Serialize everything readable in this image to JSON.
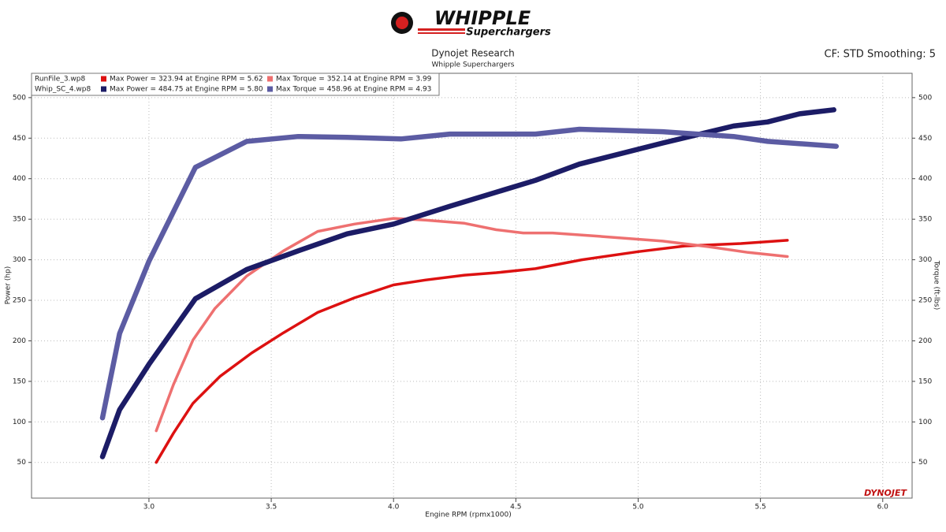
{
  "chart_data": {
    "type": "line",
    "logo_text": "WHIPPLE",
    "logo_tagline": "Superchargers",
    "title": "Dynojet Research",
    "subtitle": "Whipple Superchargers",
    "settings_label": "CF: STD Smoothing: 5",
    "watermark": "DYNOJET",
    "x_label": "Engine RPM (rpmx1000)",
    "y_label": "Power (hp)",
    "y2_label": "Torque (ft-lbs)",
    "runs": [
      "RunFile_3.wp8",
      "Whip_SC_4.wp8"
    ],
    "xlim": [
      2.52,
      6.12
    ],
    "xticks": [
      {
        "value": 3,
        "label": "3.0"
      },
      3.5,
      {
        "value": 4,
        "label": "4.0"
      },
      4.5,
      {
        "value": 5,
        "label": "5.0"
      },
      5.5,
      {
        "value": 6,
        "label": "6.0"
      }
    ],
    "ylim": [
      6,
      530
    ],
    "yticks": [
      50,
      100,
      150,
      200,
      250,
      300,
      350,
      400,
      450,
      500
    ],
    "y2lim": [
      6,
      530
    ],
    "y2ticks": [
      50,
      100,
      150,
      200,
      250,
      300,
      350,
      400,
      450,
      500
    ],
    "grid": true,
    "series": [
      {
        "name": "Max Power = 323.94 at Engine RPM = 5.62",
        "color": "#dd1111",
        "x": [
          3.03,
          3.1,
          3.18,
          3.29,
          3.42,
          3.55,
          3.69,
          3.84,
          4.0,
          4.13,
          4.29,
          4.42,
          4.58,
          4.77,
          5.0,
          5.19,
          5.42,
          5.61
        ],
        "values": [
          50,
          86,
          123,
          156,
          185,
          210,
          235,
          253,
          269,
          275,
          281,
          284,
          289,
          300,
          310,
          317,
          320,
          324
        ]
      },
      {
        "name": "Max Torque = 352.14 at Engine RPM = 3.99",
        "color": "#ee7070",
        "axis": "y2",
        "x": [
          3.03,
          3.1,
          3.18,
          3.27,
          3.4,
          3.55,
          3.69,
          3.84,
          4.0,
          4.13,
          4.29,
          4.42,
          4.53,
          4.65,
          4.84,
          5.1,
          5.29,
          5.45,
          5.61
        ],
        "values": [
          89,
          146,
          201,
          240,
          280,
          311,
          335,
          344,
          351,
          349,
          345,
          337,
          333,
          333,
          329,
          323,
          316,
          309,
          304
        ]
      },
      {
        "name": "Max Power = 484.75 at Engine RPM = 5.80",
        "color": "#1c1c66",
        "x": [
          2.81,
          2.88,
          3.0,
          3.19,
          3.4,
          3.61,
          3.81,
          4.0,
          4.23,
          4.58,
          4.76,
          5.1,
          5.39,
          5.53,
          5.66,
          5.8
        ],
        "values": [
          57,
          115,
          171,
          252,
          288,
          311,
          332,
          344,
          366,
          398,
          418,
          444,
          465,
          470,
          480,
          485
        ]
      },
      {
        "name": "Max Torque = 458.96 at Engine RPM = 4.93",
        "color": "#5c5ca3",
        "axis": "y2",
        "x": [
          2.81,
          2.88,
          3.0,
          3.19,
          3.4,
          3.61,
          3.81,
          4.03,
          4.23,
          4.58,
          4.76,
          5.1,
          5.39,
          5.53,
          5.81
        ],
        "values": [
          105,
          209,
          298,
          414,
          446,
          452,
          451,
          449,
          455,
          455,
          461,
          458,
          452,
          446,
          440
        ]
      }
    ]
  }
}
